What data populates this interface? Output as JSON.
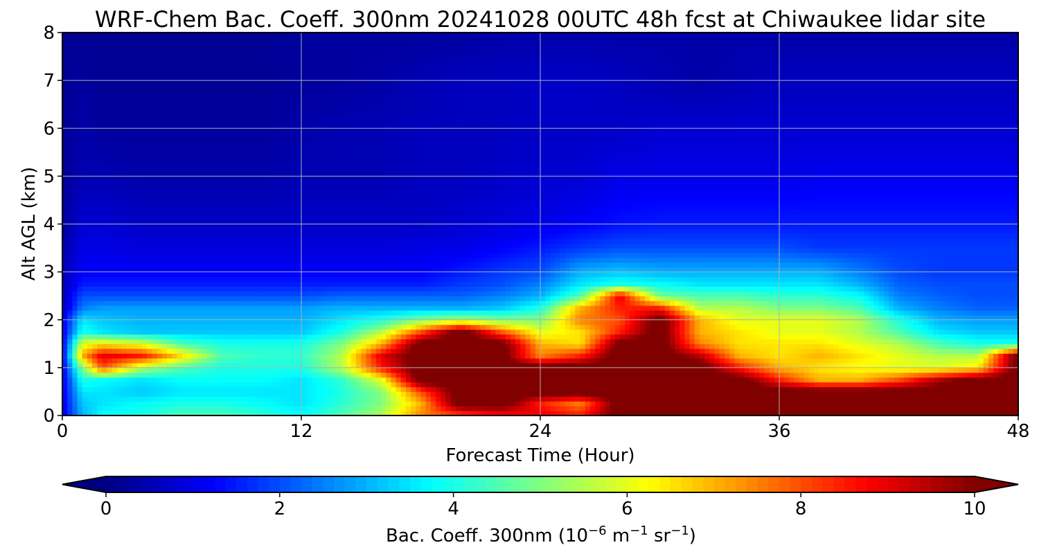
{
  "chart_data": {
    "type": "heatmap",
    "title": "WRF-Chem Bac. Coeff. 300nm  20241028 00UTC 48h fcst at Chiwaukee lidar site",
    "xlabel": "Forecast Time (Hour)",
    "ylabel": "Alt AGL (km)",
    "xlim": [
      0,
      48
    ],
    "ylim": [
      0,
      8
    ],
    "xticks": [
      0,
      12,
      24,
      36,
      48
    ],
    "yticks": [
      0,
      1,
      2,
      3,
      4,
      5,
      6,
      7,
      8
    ],
    "grid": true,
    "colormap": "jet",
    "colorbar": {
      "label_text": "Bac. Coeff. 300nm  (10",
      "label_exp1": "−6",
      "label_unit1": " m",
      "label_exp2": "−1",
      "label_unit2": " sr",
      "label_exp3": "−1",
      "label_close": ")",
      "min": 0,
      "max": 10,
      "ticks": [
        0,
        2,
        4,
        6,
        8,
        10
      ],
      "extend": "both"
    },
    "x": [
      0,
      1,
      2,
      4,
      6,
      8,
      10,
      12,
      14,
      16,
      18,
      20,
      22,
      24,
      26,
      28,
      30,
      32,
      34,
      36,
      38,
      40,
      42,
      44,
      46,
      48
    ],
    "y": [
      0,
      0.25,
      0.5,
      0.75,
      1.0,
      1.25,
      1.5,
      1.75,
      2.0,
      2.25,
      2.5,
      2.75,
      3.0,
      3.5,
      4.0,
      5.0,
      6.0,
      7.0,
      8.0
    ],
    "z": [
      [
        1.0,
        3.0,
        3.8,
        4.0,
        4.5,
        4.5,
        4.2,
        3.8,
        4.5,
        5.5,
        7.5,
        8.0,
        8.5,
        9.0,
        8.5,
        10.5,
        10.5,
        10.5,
        10.5,
        10.5,
        10.5,
        10.5,
        10.5,
        10.5,
        10.5,
        10.5
      ],
      [
        1.0,
        3.2,
        3.5,
        3.8,
        4.0,
        4.0,
        3.8,
        3.5,
        4.2,
        5.0,
        7.0,
        10.5,
        10.5,
        8.5,
        7.5,
        10.5,
        10.5,
        10.5,
        10.5,
        10.5,
        10.5,
        10.5,
        10.5,
        10.5,
        10.5,
        10.5
      ],
      [
        1.0,
        3.5,
        3.5,
        3.2,
        3.5,
        3.5,
        3.5,
        3.5,
        4.0,
        5.0,
        8.0,
        10.5,
        10.5,
        10.5,
        10.5,
        10.5,
        10.5,
        10.5,
        10.5,
        10.5,
        10.5,
        10.5,
        10.5,
        10.5,
        10.5,
        10.5
      ],
      [
        1.0,
        4.0,
        3.8,
        3.5,
        3.8,
        3.8,
        3.8,
        3.5,
        4.2,
        6.0,
        10.5,
        10.5,
        10.5,
        10.5,
        10.5,
        10.5,
        10.5,
        10.5,
        10.5,
        8.5,
        7.0,
        7.0,
        8.0,
        9.5,
        10.5,
        10.5
      ],
      [
        1.0,
        5.0,
        8.0,
        5.5,
        4.5,
        4.0,
        4.0,
        4.0,
        5.5,
        8.5,
        10.5,
        10.5,
        10.5,
        10.5,
        10.5,
        10.5,
        10.5,
        10.5,
        8.5,
        7.0,
        6.5,
        6.2,
        6.0,
        6.0,
        6.5,
        10.5
      ],
      [
        1.0,
        7.0,
        9.0,
        8.5,
        6.5,
        4.5,
        4.2,
        4.2,
        5.5,
        9.0,
        10.5,
        10.5,
        10.5,
        7.5,
        8.5,
        10.5,
        10.5,
        9.5,
        7.0,
        6.5,
        7.0,
        6.5,
        6.0,
        5.5,
        5.5,
        10.5
      ],
      [
        1.0,
        6.0,
        6.5,
        6.0,
        4.5,
        4.0,
        4.0,
        4.0,
        5.0,
        7.0,
        10.5,
        10.5,
        10.5,
        7.0,
        6.5,
        10.5,
        10.5,
        7.5,
        6.5,
        6.5,
        6.5,
        6.0,
        5.5,
        4.5,
        4.0,
        4.0
      ],
      [
        1.0,
        4.0,
        3.5,
        3.2,
        3.2,
        3.2,
        3.2,
        3.2,
        4.0,
        5.5,
        8.0,
        10.5,
        8.0,
        6.0,
        6.5,
        8.5,
        10.5,
        7.0,
        6.5,
        6.0,
        6.0,
        5.5,
        4.5,
        3.5,
        3.2,
        3.2
      ],
      [
        1.0,
        3.5,
        3.2,
        3.0,
        3.0,
        3.0,
        3.0,
        3.0,
        3.5,
        4.0,
        5.0,
        5.5,
        5.0,
        5.0,
        7.5,
        8.0,
        10.5,
        7.0,
        6.0,
        6.0,
        6.0,
        5.5,
        4.0,
        3.0,
        2.8,
        2.8
      ],
      [
        0.5,
        2.5,
        2.8,
        2.8,
        2.8,
        2.8,
        2.8,
        2.8,
        3.0,
        3.0,
        3.0,
        3.0,
        3.2,
        4.0,
        7.0,
        8.5,
        8.5,
        5.5,
        5.5,
        5.0,
        5.0,
        4.5,
        3.0,
        2.5,
        2.2,
        2.2
      ],
      [
        0.5,
        2.0,
        2.0,
        2.0,
        2.0,
        2.0,
        2.0,
        2.0,
        2.2,
        2.2,
        2.2,
        2.2,
        2.5,
        3.0,
        4.5,
        9.0,
        4.8,
        4.5,
        4.5,
        4.2,
        4.2,
        3.8,
        2.5,
        2.2,
        2.0,
        2.0
      ],
      [
        0.5,
        1.5,
        1.5,
        1.5,
        1.5,
        1.5,
        1.5,
        1.5,
        1.5,
        1.5,
        1.5,
        1.8,
        2.0,
        2.5,
        3.5,
        4.0,
        3.8,
        3.5,
        3.5,
        3.5,
        3.5,
        3.0,
        2.2,
        2.0,
        2.0,
        2.0
      ],
      [
        0.5,
        1.2,
        1.2,
        1.2,
        1.2,
        1.2,
        1.2,
        1.2,
        1.2,
        1.2,
        1.2,
        1.5,
        1.8,
        2.0,
        3.0,
        3.2,
        3.0,
        3.0,
        3.0,
        3.0,
        3.0,
        2.5,
        2.0,
        1.8,
        1.8,
        1.8
      ],
      [
        0.4,
        1.0,
        1.0,
        0.9,
        0.9,
        0.9,
        0.9,
        0.9,
        0.9,
        0.9,
        1.0,
        1.0,
        1.2,
        1.5,
        1.8,
        2.0,
        2.0,
        2.0,
        2.0,
        2.0,
        1.8,
        1.8,
        1.8,
        1.8,
        1.8,
        1.8
      ],
      [
        0.3,
        0.8,
        0.8,
        0.7,
        0.7,
        0.7,
        0.7,
        0.7,
        0.7,
        0.7,
        0.7,
        0.8,
        0.9,
        1.0,
        1.2,
        1.4,
        1.5,
        1.5,
        1.5,
        1.5,
        1.5,
        1.5,
        1.5,
        1.5,
        1.5,
        1.5
      ],
      [
        0.2,
        0.5,
        0.5,
        0.4,
        0.4,
        0.4,
        0.4,
        0.5,
        0.5,
        0.5,
        0.6,
        0.6,
        0.7,
        0.8,
        0.8,
        1.0,
        1.0,
        1.0,
        1.0,
        1.0,
        1.1,
        1.1,
        1.1,
        1.1,
        1.1,
        1.1
      ],
      [
        0.2,
        0.4,
        0.3,
        0.3,
        0.3,
        0.3,
        0.3,
        0.4,
        0.5,
        0.5,
        0.6,
        0.6,
        0.6,
        0.7,
        0.7,
        0.7,
        0.8,
        0.8,
        0.8,
        0.8,
        0.8,
        0.8,
        0.8,
        0.8,
        0.8,
        0.8
      ],
      [
        0.2,
        0.3,
        0.2,
        0.2,
        0.2,
        0.2,
        0.2,
        0.3,
        0.3,
        0.4,
        0.5,
        0.6,
        0.6,
        0.7,
        0.7,
        0.6,
        0.5,
        0.4,
        0.5,
        0.6,
        0.6,
        0.6,
        0.6,
        0.6,
        0.6,
        0.6
      ],
      [
        0.2,
        0.2,
        0.2,
        0.2,
        0.2,
        0.2,
        0.2,
        0.3,
        0.3,
        0.3,
        0.3,
        0.3,
        0.4,
        0.4,
        0.4,
        0.4,
        0.4,
        0.4,
        0.4,
        0.4,
        0.4,
        0.4,
        0.4,
        0.4,
        0.4,
        0.4
      ]
    ]
  }
}
